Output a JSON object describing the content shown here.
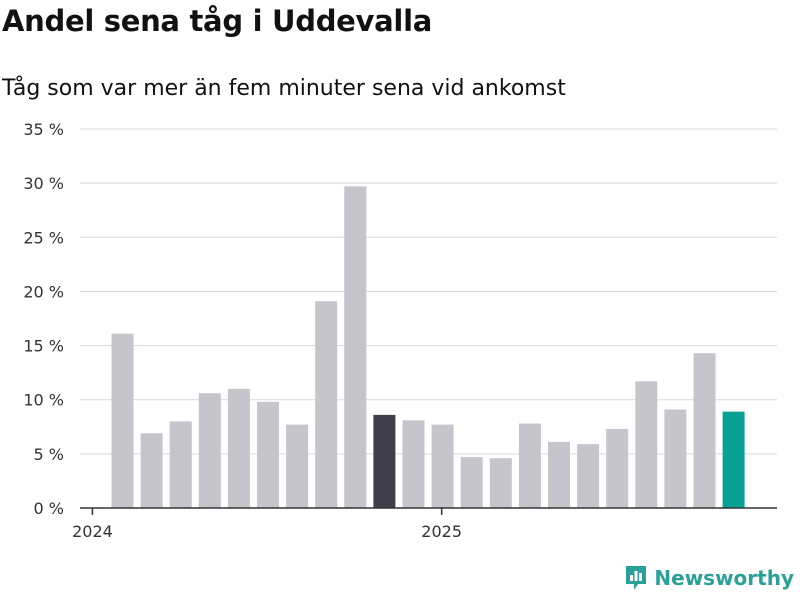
{
  "header": {
    "title": "Andel sena tåg i Uddevalla",
    "subtitle": "Tåg som var mer än fem minuter sena vid ankomst"
  },
  "brand": {
    "name": "Newsworthy"
  },
  "colors": {
    "bar_default": "#c6c5cc",
    "bar_highlight_dark": "#403f4c",
    "bar_highlight_teal": "#06a194",
    "gridline": "#d9d9d9",
    "axis": "#333333",
    "brand": "#2aa198"
  },
  "chart_data": {
    "type": "bar",
    "title": "Andel sena tåg i Uddevalla",
    "subtitle": "Tåg som var mer än fem minuter sena vid ankomst",
    "xlabel": "",
    "ylabel": "",
    "ylim": [
      0,
      35
    ],
    "y_ticks": [
      0,
      5,
      10,
      15,
      20,
      25,
      30,
      35
    ],
    "y_tick_labels": [
      "0 %",
      "5 %",
      "10 %",
      "15 %",
      "20 %",
      "25 %",
      "30 %",
      "35 %"
    ],
    "grid": true,
    "categories": [
      "2024-01",
      "2024-02",
      "2024-03",
      "2024-04",
      "2024-05",
      "2024-06",
      "2024-07",
      "2024-08",
      "2024-09",
      "2024-10",
      "2024-11",
      "2024-12",
      "2025-01",
      "2025-02",
      "2025-03",
      "2025-04",
      "2025-05",
      "2025-06",
      "2025-07",
      "2025-08",
      "2025-09",
      "2025-10"
    ],
    "values": [
      16.1,
      6.9,
      8.0,
      10.6,
      11.0,
      9.8,
      7.7,
      19.1,
      29.7,
      8.6,
      8.1,
      7.7,
      4.7,
      4.6,
      7.8,
      6.1,
      5.9,
      7.3,
      11.7,
      9.1,
      14.3,
      8.9
    ],
    "highlights": {
      "9": "dark",
      "21": "teal"
    },
    "x_tick_labels": [
      {
        "label": "2024",
        "index": 0
      },
      {
        "label": "2025",
        "index": 12
      }
    ]
  }
}
